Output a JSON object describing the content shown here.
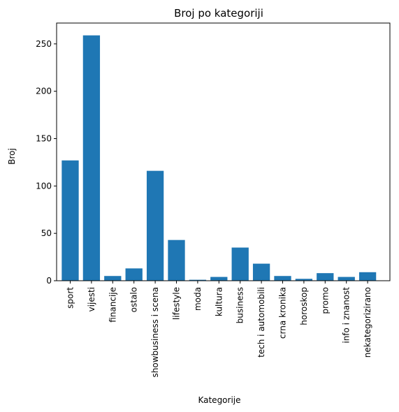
{
  "chart_data": {
    "type": "bar",
    "title": "Broj po kategoriji",
    "xlabel": "Kategorije",
    "ylabel": "Broj",
    "categories": [
      "sport",
      "vijesti",
      "financije",
      "ostalo",
      "showbusiness i scena",
      "lifestyle",
      "moda",
      "kultura",
      "business",
      "tech i automobili",
      "crna kronika",
      "horoskop",
      "promo",
      "info i znanost",
      "nekategorizirano"
    ],
    "values": [
      127,
      259,
      5,
      13,
      116,
      43,
      1,
      4,
      35,
      18,
      5,
      2,
      8,
      4,
      9
    ],
    "ylim": [
      0,
      272
    ],
    "yticks": [
      0,
      50,
      100,
      150,
      200,
      250
    ],
    "grid": false,
    "bar_color": "#1f77b4"
  }
}
